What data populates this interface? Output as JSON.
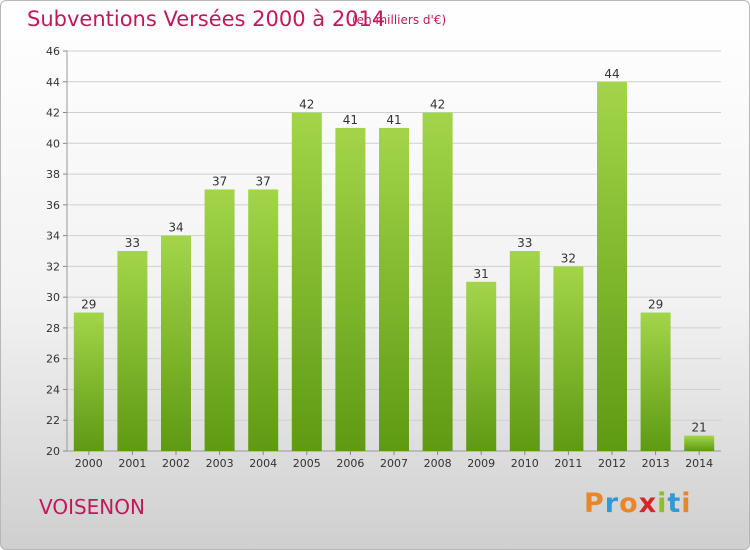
{
  "header": {
    "title": "Subventions Versées 2000 à 2014",
    "subtitle": "(en milliers d'€)"
  },
  "footer": {
    "commune": "VOISENON",
    "logo_text": "Proxiti",
    "logo_colors": [
      "#e8862a",
      "#2e9ad6",
      "#e8862a",
      "#d6262b",
      "#8cbf26",
      "#2e9ad6",
      "#e8862a"
    ]
  },
  "colors": {
    "title": "#c2185b",
    "bar_top": "#a3d54a",
    "bar_bottom": "#5e9a12",
    "grid": "#d0d0d0"
  },
  "chart_data": {
    "type": "bar",
    "categories": [
      "2000",
      "2001",
      "2002",
      "2003",
      "2004",
      "2005",
      "2006",
      "2007",
      "2008",
      "2009",
      "2010",
      "2011",
      "2012",
      "2013",
      "2014"
    ],
    "values": [
      29,
      33,
      34,
      37,
      37,
      42,
      41,
      41,
      42,
      31,
      33,
      32,
      44,
      29,
      21
    ],
    "ylim": [
      20,
      46
    ],
    "yticks": [
      20,
      22,
      24,
      26,
      28,
      30,
      32,
      34,
      36,
      38,
      40,
      42,
      44,
      46
    ],
    "grid": true
  }
}
